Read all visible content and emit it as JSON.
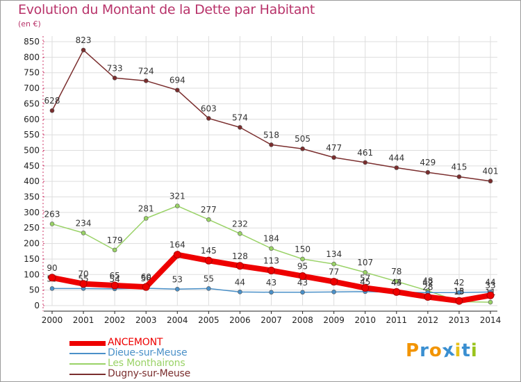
{
  "header": {
    "title": "Evolution du Montant de la Dette par Habitant",
    "unit": "(en €)"
  },
  "logo": {
    "text": "Proxiti",
    "letters": [
      "P",
      "r",
      "o",
      "x",
      "i",
      "t",
      "i"
    ],
    "colors": [
      "#f29400",
      "#3a8fd1",
      "#f29400",
      "#3a8fd1",
      "#e8c21a",
      "#3a8fd1",
      "#9ac31c"
    ]
  },
  "chart_data": {
    "type": "line",
    "title": "Evolution du Montant de la Dette par Habitant",
    "ylabel": "(en €)",
    "xlabel": "",
    "ylim": [
      0,
      850
    ],
    "yticks": [
      0,
      50,
      100,
      150,
      200,
      250,
      300,
      350,
      400,
      450,
      500,
      550,
      600,
      650,
      700,
      750,
      800,
      850
    ],
    "x": [
      "2000",
      "2001",
      "2002",
      "2003",
      "2004",
      "2005",
      "2006",
      "2007",
      "2008",
      "2009",
      "2010",
      "2011",
      "2012",
      "2013",
      "2014"
    ],
    "grid": true,
    "legend": "bottom-left",
    "series": [
      {
        "name": "ANCEMONT",
        "color": "#ee0000",
        "values": [
          90,
          70,
          65,
          60,
          164,
          145,
          128,
          113,
          95,
          77,
          57,
          44,
          28,
          15,
          33
        ]
      },
      {
        "name": "Dieue-sur-Meuse",
        "color": "#4a90c8",
        "values": [
          55,
          55,
          54,
          56,
          53,
          55,
          44,
          43,
          43,
          44,
          45,
          43,
          42,
          42,
          44
        ]
      },
      {
        "name": "Les Monthairons",
        "color": "#99d266",
        "values": [
          263,
          234,
          179,
          281,
          321,
          277,
          232,
          184,
          150,
          134,
          107,
          78,
          48,
          13,
          11
        ]
      },
      {
        "name": "Dugny-sur-Meuse",
        "color": "#7a2d2d",
        "values": [
          628,
          823,
          733,
          724,
          694,
          603,
          574,
          518,
          505,
          477,
          461,
          444,
          429,
          415,
          401
        ]
      }
    ]
  }
}
